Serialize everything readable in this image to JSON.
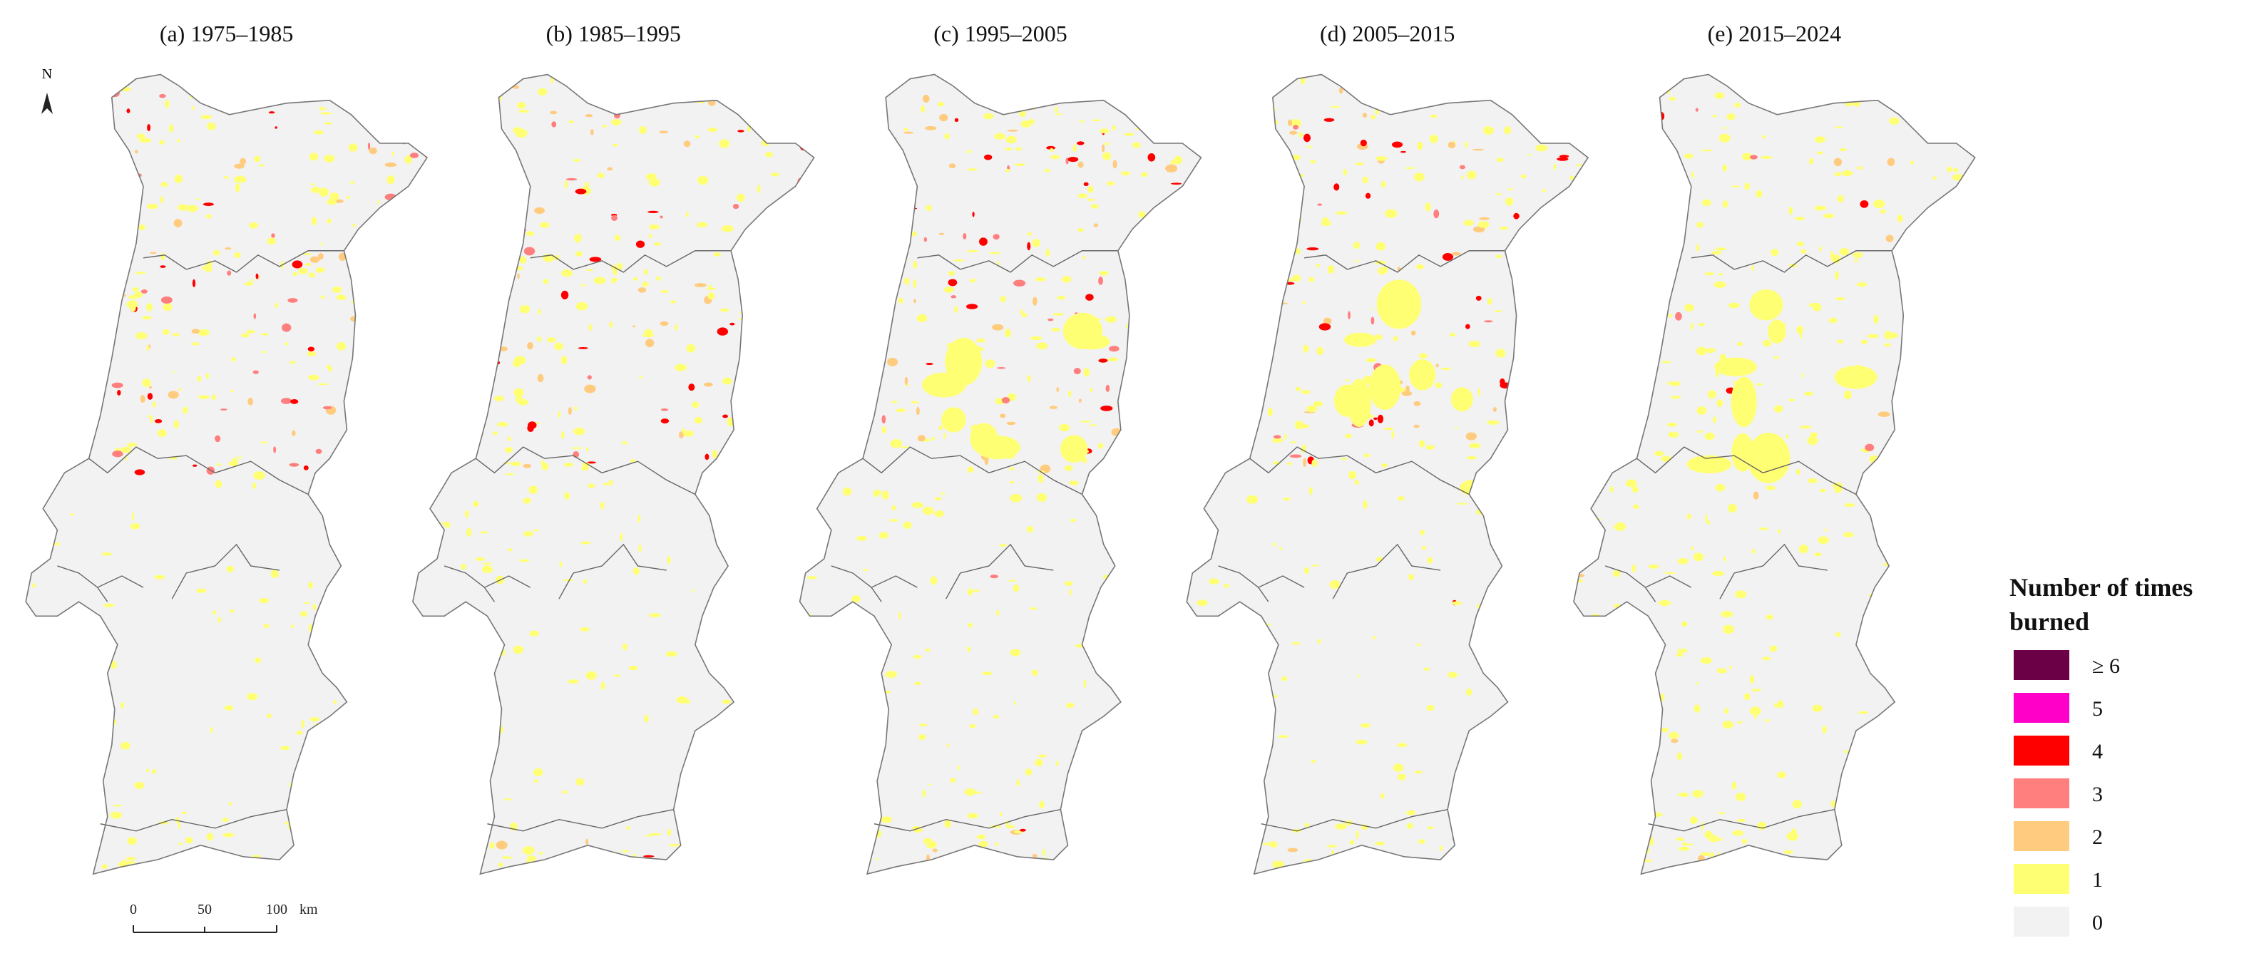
{
  "panels": [
    {
      "title": "(a) 1975–1985"
    },
    {
      "title": "(b) 1985–1995"
    },
    {
      "title": "(c) 1995–2005"
    },
    {
      "title": "(d) 2005–2015"
    },
    {
      "title": "(e) 2015–2024"
    }
  ],
  "north_arrow": "N",
  "scale_bar": {
    "labels": [
      "0",
      "50",
      "100"
    ],
    "unit": "km"
  },
  "legend": {
    "title": "Number of times burned",
    "items": [
      {
        "label": "≥ 6",
        "color": "#6b0046"
      },
      {
        "label": "5",
        "color": "#ff00c8"
      },
      {
        "label": "4",
        "color": "#ff0000"
      },
      {
        "label": "3",
        "color": "#ff7f7f"
      },
      {
        "label": "2",
        "color": "#ffcc7f"
      },
      {
        "label": "1",
        "color": "#ffff73"
      },
      {
        "label": "0",
        "color": "#f2f2f2"
      }
    ]
  }
}
